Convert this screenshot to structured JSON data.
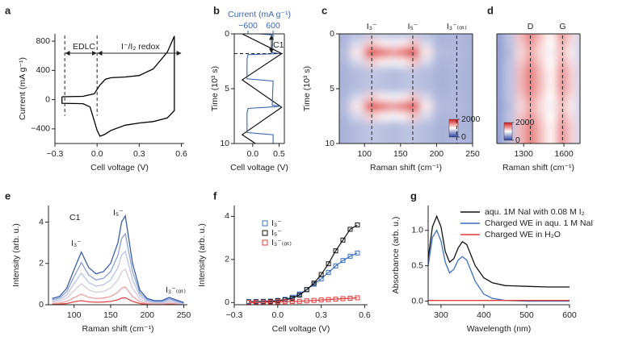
{
  "chart_data": [
    {
      "type": "line",
      "panel_label": "a",
      "xlabel": "Cell voltage (V)",
      "ylabel": "Current (mA g⁻¹)",
      "xlim": [
        -0.3,
        0.62
      ],
      "xticks": [
        {
          "value": -0.3,
          "label": "−0.3"
        },
        {
          "value": 0,
          "label": "0.0"
        },
        {
          "value": 0.3,
          "label": "0.3"
        },
        {
          "value": 0.6,
          "label": "0.6"
        }
      ],
      "ylim": [
        -600,
        900
      ],
      "yticks": [
        {
          "value": -400,
          "label": "−400"
        },
        0,
        400,
        800
      ],
      "annotations": [
        "EDLC",
        "I⁻/I₂ redox"
      ],
      "guides": [
        {
          "x": -0.23
        },
        {
          "x": 0
        }
      ],
      "x": [
        -0.25,
        -0.1,
        -0.02,
        0.02,
        0.06,
        0.1,
        0.2,
        0.3,
        0.4,
        0.5,
        0.55,
        0.55,
        0.5,
        0.4,
        0.3,
        0.2,
        0.1,
        0.05,
        0.02,
        0,
        -0.05,
        -0.1,
        -0.25,
        -0.25
      ],
      "series": [
        {
          "color": "#000000",
          "values": [
            40,
            45,
            80,
            200,
            280,
            300,
            310,
            330,
            420,
            650,
            870,
            -150,
            -250,
            -300,
            -320,
            -350,
            -420,
            -480,
            -500,
            -420,
            -100,
            -55,
            -50,
            40
          ]
        }
      ]
    },
    {
      "type": "vline",
      "panel_label": "b",
      "xlabel": "Cell voltage (V)",
      "ylabel": "Time (10³ s)",
      "x2label": "Current (mA g⁻¹)",
      "xlim": [
        -0.35,
        0.6
      ],
      "xticks": [
        {
          "value": 0,
          "label": "0.0"
        },
        {
          "value": 0.5,
          "label": "0.5"
        }
      ],
      "x2lim": [
        -1260,
        1140
      ],
      "x2ticks": [
        {
          "value": -600,
          "label": "−600"
        },
        600
      ],
      "ylim": [
        10,
        0
      ],
      "yticks": [
        0,
        5,
        10
      ],
      "annotations": [
        "C1"
      ],
      "hguides": [
        0,
        1.8
      ],
      "series": [
        {
          "color": "#000000",
          "t": [
            0,
            1.8,
            4.2,
            6.7,
            9.2,
            10
          ],
          "values": [
            -0.2,
            0.55,
            -0.2,
            0.55,
            -0.2,
            0.05
          ]
        },
        {
          "color": "#3a66b0",
          "axis": "x2",
          "t": [
            0,
            0.1,
            1.7,
            1.8,
            1.9,
            2.3,
            4.1,
            4.2,
            4.3,
            6.5,
            6.6,
            6.7,
            6.8,
            7.2,
            9.0,
            9.1,
            9.2,
            10
          ],
          "values": [
            -100,
            600,
            550,
            900,
            -600,
            -650,
            -650,
            -50,
            600,
            560,
            900,
            300,
            -600,
            -650,
            -650,
            -50,
            600,
            600
          ]
        }
      ]
    },
    {
      "type": "heatmap",
      "panel_label": "c",
      "xlabel": "Raman shift (cm⁻¹)",
      "ylabel": "Time (10³ s)",
      "xlim": [
        65,
        250
      ],
      "xticks": [
        100,
        150,
        200,
        250
      ],
      "ylim": [
        10,
        0
      ],
      "yticks": [
        0,
        5,
        10
      ],
      "zlim": [
        0,
        2000
      ],
      "zticks": [
        0,
        2000
      ],
      "colormap": [
        "#2b3f9e",
        "#ffffff",
        "#d7191c"
      ],
      "guides": [
        {
          "x": 110,
          "label": "I₃⁻"
        },
        {
          "x": 167,
          "label": "I₅⁻"
        },
        {
          "x": 228,
          "label": "I₃⁻₍ₒₜ₎"
        }
      ],
      "x": [
        70,
        90,
        110,
        125,
        140,
        155,
        167,
        185,
        205,
        228,
        250
      ],
      "y": [
        0,
        0.8,
        1.7,
        2.6,
        3.4,
        4.2,
        5.0,
        5.8,
        6.6,
        7.5,
        8.4,
        9.2,
        10
      ],
      "z": [
        [
          600,
          650,
          700,
          680,
          650,
          680,
          700,
          650,
          600,
          620,
          600
        ],
        [
          620,
          800,
          1200,
          1050,
          950,
          1050,
          1250,
          800,
          620,
          630,
          600
        ],
        [
          650,
          1100,
          1900,
          1700,
          1500,
          1700,
          1950,
          1100,
          650,
          640,
          600
        ],
        [
          620,
          800,
          1200,
          1050,
          950,
          1050,
          1250,
          800,
          620,
          630,
          600
        ],
        [
          600,
          650,
          700,
          680,
          650,
          680,
          700,
          650,
          600,
          620,
          600
        ],
        [
          600,
          650,
          700,
          680,
          650,
          680,
          700,
          650,
          600,
          620,
          600
        ],
        [
          600,
          650,
          700,
          680,
          650,
          680,
          700,
          650,
          600,
          620,
          600
        ],
        [
          620,
          800,
          1200,
          1050,
          950,
          1050,
          1250,
          800,
          620,
          630,
          600
        ],
        [
          650,
          1100,
          1900,
          1700,
          1500,
          1700,
          1950,
          1100,
          650,
          640,
          600
        ],
        [
          620,
          800,
          1200,
          1050,
          950,
          1050,
          1250,
          800,
          620,
          630,
          600
        ],
        [
          600,
          650,
          700,
          680,
          650,
          680,
          700,
          650,
          600,
          620,
          600
        ],
        [
          600,
          650,
          700,
          680,
          650,
          680,
          700,
          650,
          600,
          620,
          600
        ],
        [
          600,
          650,
          700,
          680,
          650,
          680,
          700,
          650,
          600,
          620,
          600
        ]
      ]
    },
    {
      "type": "heatmap",
      "panel_label": "d",
      "xlabel": "Raman shift (cm⁻¹)",
      "xlim": [
        1100,
        1720
      ],
      "xticks": [
        1300,
        1600
      ],
      "ylim": [
        10,
        0
      ],
      "yticks": [],
      "zlim": [
        0,
        2000
      ],
      "zticks": [
        0,
        2000
      ],
      "colormap": [
        "#2b3f9e",
        "#ffffff",
        "#d7191c"
      ],
      "guides": [
        {
          "x": 1350,
          "label": "D"
        },
        {
          "x": 1590,
          "label": "G"
        }
      ],
      "x": [
        1100,
        1200,
        1280,
        1350,
        1420,
        1500,
        1590,
        1650,
        1720
      ],
      "y": [
        0,
        0.8,
        1.7,
        2.6,
        3.4,
        4.2,
        5.0,
        5.8,
        6.6,
        7.5,
        8.4,
        9.2,
        10
      ],
      "z": [
        [
          500,
          700,
          1300,
          1600,
          1300,
          1050,
          1500,
          1200,
          800
        ],
        [
          500,
          680,
          1220,
          1500,
          1220,
          1000,
          1400,
          1120,
          780
        ],
        [
          500,
          650,
          1150,
          1400,
          1150,
          950,
          1300,
          1050,
          750
        ],
        [
          500,
          680,
          1220,
          1500,
          1220,
          1000,
          1400,
          1120,
          780
        ],
        [
          500,
          700,
          1300,
          1600,
          1300,
          1050,
          1500,
          1200,
          800
        ],
        [
          500,
          700,
          1300,
          1600,
          1300,
          1050,
          1500,
          1200,
          800
        ],
        [
          500,
          700,
          1300,
          1600,
          1300,
          1050,
          1500,
          1200,
          800
        ],
        [
          500,
          680,
          1220,
          1500,
          1220,
          1000,
          1400,
          1120,
          780
        ],
        [
          500,
          650,
          1150,
          1400,
          1150,
          950,
          1300,
          1050,
          750
        ],
        [
          500,
          680,
          1220,
          1500,
          1220,
          1000,
          1400,
          1120,
          780
        ],
        [
          500,
          700,
          1300,
          1600,
          1300,
          1050,
          1500,
          1200,
          800
        ],
        [
          500,
          700,
          1300,
          1600,
          1300,
          1050,
          1500,
          1200,
          800
        ],
        [
          500,
          700,
          1300,
          1600,
          1300,
          1050,
          1500,
          1200,
          800
        ]
      ]
    },
    {
      "type": "line",
      "panel_label": "e",
      "xlabel": "Raman shift (cm⁻¹)",
      "ylabel": "Intensity (arb. u.)",
      "xlim": [
        65,
        255
      ],
      "xticks": [
        100,
        150,
        200,
        250
      ],
      "ylim": [
        0,
        4.8
      ],
      "yticks": [
        0,
        2,
        4
      ],
      "annotations": [
        "C1",
        "I₃⁻",
        "I₅⁻",
        "I₃⁻₍ₒₜ₎"
      ],
      "x": [
        70,
        80,
        90,
        100,
        110,
        120,
        130,
        140,
        150,
        160,
        165,
        170,
        180,
        190,
        200,
        210,
        220,
        230,
        250
      ],
      "series": [
        {
          "color": "#e04a4a",
          "values": [
            0.02,
            0.03,
            0.06,
            0.14,
            0.2,
            0.14,
            0.12,
            0.13,
            0.16,
            0.24,
            0.32,
            0.34,
            0.16,
            0.06,
            0.02,
            0.02,
            0.02,
            0.03,
            0.01
          ]
        },
        {
          "color": "#e8a0a0",
          "values": [
            0.06,
            0.08,
            0.16,
            0.34,
            0.51,
            0.36,
            0.3,
            0.32,
            0.4,
            0.6,
            0.8,
            0.86,
            0.4,
            0.14,
            0.06,
            0.04,
            0.04,
            0.07,
            0.02
          ]
        },
        {
          "color": "#d8c8dc",
          "values": [
            0.12,
            0.16,
            0.32,
            0.68,
            1.02,
            0.72,
            0.6,
            0.64,
            0.8,
            1.2,
            1.6,
            1.72,
            0.8,
            0.28,
            0.12,
            0.08,
            0.08,
            0.14,
            0.04
          ]
        },
        {
          "color": "#b8c4e4",
          "values": [
            0.18,
            0.24,
            0.48,
            1.02,
            1.53,
            1.08,
            0.9,
            0.96,
            1.2,
            1.8,
            2.4,
            2.58,
            1.2,
            0.42,
            0.18,
            0.12,
            0.12,
            0.21,
            0.06
          ]
        },
        {
          "color": "#8aa0d4",
          "values": [
            0.24,
            0.32,
            0.64,
            1.36,
            2.04,
            1.44,
            1.2,
            1.28,
            1.6,
            2.4,
            3.2,
            3.44,
            1.6,
            0.56,
            0.24,
            0.16,
            0.16,
            0.28,
            0.08
          ]
        },
        {
          "color": "#3a5ea8",
          "values": [
            0.3,
            0.4,
            0.8,
            1.7,
            2.55,
            1.8,
            1.5,
            1.6,
            2.0,
            3.0,
            4.0,
            4.3,
            2.0,
            0.7,
            0.3,
            0.2,
            0.2,
            0.35,
            0.1
          ]
        }
      ]
    },
    {
      "type": "scatter",
      "panel_label": "f",
      "xlabel": "Cell voltage (V)",
      "ylabel": "Intensity (arb. u.)",
      "xlim": [
        -0.3,
        0.62
      ],
      "xticks": [
        {
          "value": -0.3,
          "label": "−0.3"
        },
        {
          "value": 0,
          "label": "0.0"
        },
        {
          "value": 0.3,
          "label": "0.3"
        },
        {
          "value": 0.6,
          "label": "0.6"
        }
      ],
      "ylim": [
        -0.1,
        4.5
      ],
      "yticks": [
        0,
        2,
        4
      ],
      "x": [
        -0.2,
        -0.15,
        -0.1,
        -0.05,
        0,
        0.05,
        0.1,
        0.15,
        0.2,
        0.25,
        0.3,
        0.35,
        0.4,
        0.45,
        0.5,
        0.55
      ],
      "series": [
        {
          "name": "I₃⁻",
          "color": "#3a6fc0",
          "values": [
            0.05,
            0.05,
            0.06,
            0.07,
            0.1,
            0.15,
            0.25,
            0.4,
            0.6,
            0.85,
            1.1,
            1.4,
            1.7,
            1.95,
            2.15,
            2.3
          ]
        },
        {
          "name": "I₅⁻",
          "color": "#111111",
          "values": [
            0.02,
            0.03,
            0.04,
            0.05,
            0.08,
            0.12,
            0.2,
            0.35,
            0.6,
            0.9,
            1.3,
            1.8,
            2.4,
            2.9,
            3.4,
            3.6
          ]
        },
        {
          "name": "I₃⁻₍ₒₜ₎",
          "color": "#e03c3c",
          "values": [
            0.01,
            0.01,
            0.02,
            0.02,
            0.03,
            0.04,
            0.05,
            0.06,
            0.08,
            0.1,
            0.12,
            0.14,
            0.16,
            0.18,
            0.2,
            0.22
          ]
        }
      ]
    },
    {
      "type": "line",
      "panel_label": "g",
      "xlabel": "Wavelength (nm)",
      "ylabel": "Absorbance (arb. u.)",
      "legend": "top-right",
      "xlim": [
        270,
        600
      ],
      "xticks": [
        300,
        400,
        500,
        600
      ],
      "ylim": [
        -0.05,
        1.35
      ],
      "yticks": [
        {
          "value": 0,
          "label": "0.0"
        },
        {
          "value": 0.5,
          "label": "0.5"
        },
        {
          "value": 1,
          "label": "1.0"
        }
      ],
      "x": [
        270,
        280,
        290,
        300,
        310,
        320,
        330,
        340,
        350,
        360,
        370,
        380,
        400,
        420,
        450,
        500,
        550,
        600
      ],
      "series": [
        {
          "name": "aqu. 1M NaI with 0.08 M I₂",
          "color": "#111111",
          "values": [
            0.6,
            1.05,
            1.2,
            1.05,
            0.7,
            0.55,
            0.6,
            0.75,
            0.84,
            0.8,
            0.65,
            0.5,
            0.33,
            0.26,
            0.22,
            0.21,
            0.2,
            0.2
          ]
        },
        {
          "name": "Charged WE  in aqu. 1 M NaI",
          "color": "#3a6fc0",
          "values": [
            0.5,
            0.9,
            1.0,
            0.85,
            0.55,
            0.4,
            0.45,
            0.58,
            0.63,
            0.58,
            0.43,
            0.28,
            0.1,
            0.04,
            0.01,
            0,
            0,
            0
          ]
        },
        {
          "name": "Charged WE in H₂O",
          "color": "#e03c3c",
          "values": [
            0.01,
            0.01,
            0.01,
            0.01,
            0.01,
            0.01,
            0.01,
            0.01,
            0.01,
            0.01,
            0.01,
            0.01,
            0.01,
            0.01,
            0.01,
            0.01,
            0.01,
            0.01
          ]
        }
      ]
    }
  ]
}
